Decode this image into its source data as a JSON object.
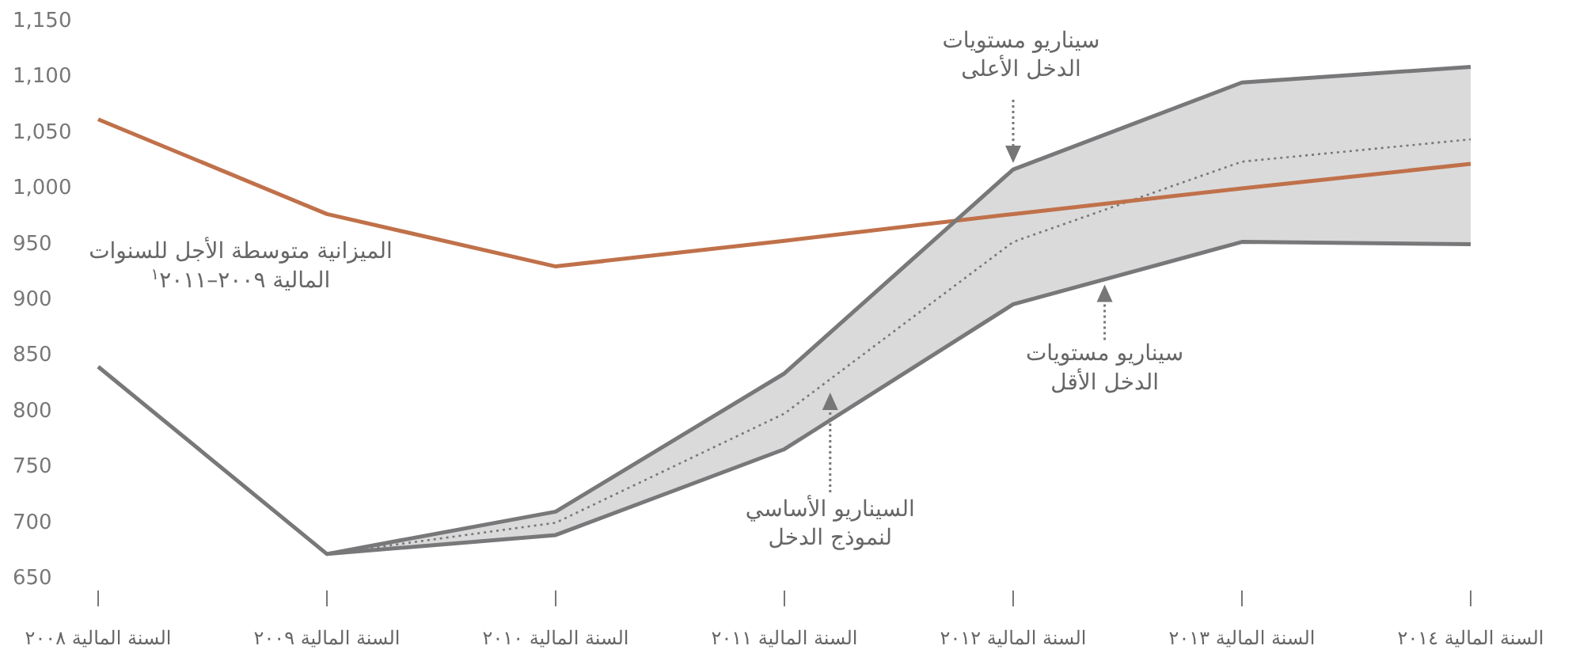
{
  "chart_data": {
    "type": "line",
    "categories": [
      "السنة المالية ٢٠٠٨",
      "السنة المالية ٢٠٠٩",
      "السنة المالية ٢٠١٠",
      "السنة المالية ٢٠١١",
      "السنة المالية ٢٠١٢",
      "السنة المالية ٢٠١٣",
      "السنة المالية ٢٠١٤"
    ],
    "ylim": [
      650,
      1150
    ],
    "yticks": [
      650,
      700,
      750,
      800,
      850,
      900,
      950,
      {
        "value": 1000,
        "label": "1,000"
      },
      {
        "value": 1050,
        "label": "1,050"
      },
      {
        "value": 1100,
        "label": "1,100"
      },
      {
        "value": 1150,
        "label": "1,150"
      }
    ],
    "grid": false,
    "series": [
      {
        "name": "الميزانية متوسطة الأجل للسنوات\nالمالية ٢٠٠٩–٢٠١١$^{١}$",
        "color": "#c0714a",
        "line_style": "solid",
        "values": [
          1060,
          975,
          928,
          951,
          975,
          998,
          1020
        ]
      },
      {
        "color": "#78787a",
        "line_style": "dotted",
        "values": [
          null,
          670,
          698,
          796,
          950,
          1022,
          1042
        ],
        "lower": [
          null,
          670,
          687,
          764,
          894,
          950,
          948
        ],
        "upper": [
          null,
          670,
          708,
          832,
          1015,
          1093,
          1107
        ]
      },
      {
        "color": "#78787a",
        "line_style": "solid",
        "values": [
          838,
          670,
          687,
          764,
          894,
          950,
          948
        ]
      },
      {
        "color": "#78787a",
        "line_style": "solid",
        "values": [
          null,
          670,
          708,
          832,
          1015,
          1093,
          1107
        ]
      }
    ],
    "annotations": [
      "سيناريو مستويات\nالدخل الأعلى",
      {
        "text": "سيناريو مستويات\nالدخل الأقل",
        "y": 916
      },
      "السيناريو الأساسي\nلنموذج الدخل"
    ]
  }
}
